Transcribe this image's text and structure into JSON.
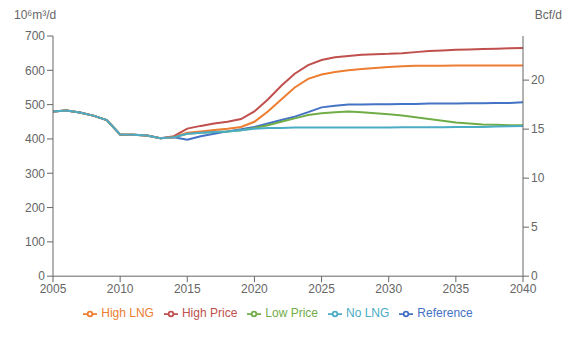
{
  "chart_data": {
    "type": "line",
    "ylabel": "10⁶m³/d",
    "y2label": "Bcf/d",
    "x": [
      2005,
      2006,
      2007,
      2008,
      2009,
      2010,
      2011,
      2012,
      2013,
      2014,
      2015,
      2016,
      2017,
      2018,
      2019,
      2020,
      2021,
      2022,
      2023,
      2024,
      2025,
      2026,
      2027,
      2028,
      2029,
      2030,
      2031,
      2032,
      2033,
      2034,
      2035,
      2036,
      2037,
      2038,
      2039,
      2040
    ],
    "series": [
      {
        "name": "Reference",
        "color": "#4472C4",
        "values": [
          480,
          483,
          477,
          468,
          455,
          413,
          412,
          410,
          402,
          405,
          398,
          408,
          415,
          422,
          428,
          435,
          445,
          455,
          465,
          478,
          492,
          497,
          500,
          500,
          501,
          501,
          502,
          502,
          503,
          503,
          503,
          504,
          504,
          505,
          505,
          507
        ]
      },
      {
        "name": "Low Price",
        "color": "#70AD47",
        "values": [
          480,
          483,
          477,
          468,
          455,
          413,
          412,
          410,
          402,
          405,
          415,
          418,
          420,
          422,
          425,
          432,
          440,
          450,
          460,
          470,
          475,
          478,
          480,
          478,
          475,
          472,
          468,
          463,
          458,
          453,
          448,
          445,
          442,
          441,
          440,
          440
        ]
      },
      {
        "name": "High Price",
        "color": "#C0504D",
        "values": [
          480,
          483,
          477,
          468,
          455,
          413,
          412,
          410,
          402,
          408,
          430,
          438,
          445,
          450,
          458,
          480,
          515,
          555,
          590,
          615,
          630,
          638,
          642,
          645,
          647,
          648,
          650,
          653,
          656,
          658,
          660,
          661,
          662,
          663,
          664,
          665
        ]
      },
      {
        "name": "High LNG",
        "color": "#ED7D31",
        "values": [
          480,
          483,
          477,
          468,
          455,
          413,
          412,
          410,
          402,
          405,
          418,
          422,
          426,
          430,
          435,
          450,
          480,
          515,
          550,
          575,
          588,
          595,
          600,
          604,
          607,
          610,
          612,
          613,
          613,
          613,
          614,
          614,
          614,
          614,
          614,
          614
        ]
      },
      {
        "name": "No LNG",
        "color": "#4BACC6",
        "values": [
          480,
          483,
          477,
          468,
          455,
          413,
          412,
          410,
          402,
          405,
          415,
          418,
          420,
          422,
          425,
          430,
          432,
          432,
          433,
          433,
          433,
          433,
          433,
          433,
          433,
          433,
          434,
          434,
          434,
          434,
          435,
          435,
          435,
          436,
          437,
          438
        ]
      }
    ],
    "xlim": [
      2005,
      2040
    ],
    "xticks": [
      2005,
      2010,
      2015,
      2020,
      2025,
      2030,
      2035,
      2040
    ],
    "ylim": [
      0,
      700
    ],
    "yticks": [
      0,
      100,
      200,
      300,
      400,
      500,
      600,
      700
    ],
    "y2lim": [
      0,
      24.5
    ],
    "y2ticks": [
      0,
      5,
      10,
      15,
      20
    ],
    "grid": false,
    "legend": "bottom"
  }
}
